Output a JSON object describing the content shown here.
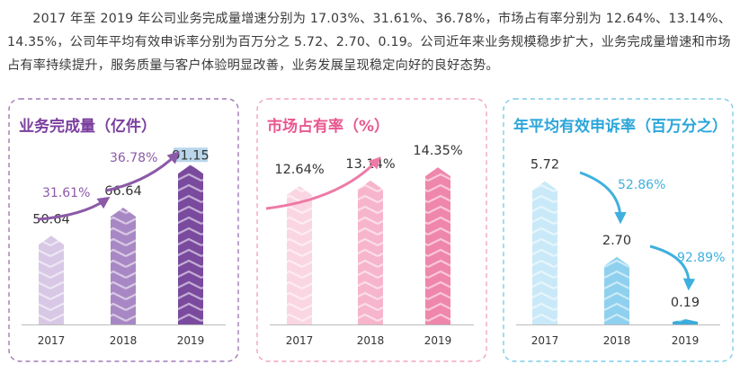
{
  "intro_text": "2017 年至 2019 年公司业务完成量增速分别为 17.03%、31.61%、36.78%，市场占有率分别为 12.64%、13.14%、14.35%，公司年平均有效申诉率分别为百万分之 5.72、2.70、0.19。公司近年来业务规模稳步扩大，业务完成量增速和市场占有率持续提升，服务质量与客户体验明显改善，业务发展呈现稳定向好的良好态势。",
  "chart_data": [
    {
      "type": "bar",
      "title": "业务完成量（亿件）",
      "categories": [
        "2017",
        "2018",
        "2019"
      ],
      "values": [
        50.64,
        66.64,
        91.15
      ],
      "value_labels": [
        "50.64",
        "66.64",
        "91.15"
      ],
      "growth_labels": [
        "31.61%",
        "36.78%"
      ],
      "ylim": [
        0,
        100
      ],
      "color_main": "#8b5aa8",
      "color_title": "#7b3f9e",
      "bar_colors": [
        "#d8c8e6",
        "#a888c4",
        "#7a4a9e"
      ],
      "border_color": "#a07ab8"
    },
    {
      "type": "bar",
      "title": "市场占有率（%）",
      "categories": [
        "2017",
        "2018",
        "2019"
      ],
      "values": [
        12.64,
        13.14,
        14.35
      ],
      "value_labels": [
        "12.64%",
        "13.14%",
        "14.35%"
      ],
      "growth_labels": [],
      "ylim": [
        0,
        16
      ],
      "color_main": "#ee7aa6",
      "color_title": "#e9568f",
      "bar_colors": [
        "#fad6e2",
        "#f6b5cc",
        "#ef86ac"
      ],
      "border_color": "#f2a4c2"
    },
    {
      "type": "bar",
      "title": "年平均有效申诉率（百万分之）",
      "categories": [
        "2017",
        "2018",
        "2019"
      ],
      "values": [
        5.72,
        2.7,
        0.19
      ],
      "value_labels": [
        "5.72",
        "2.70",
        "0.19"
      ],
      "growth_labels": [
        "52.86%",
        "92.89%"
      ],
      "ylim": [
        0,
        7
      ],
      "color_main": "#3fb0de",
      "color_title": "#2ba6d9",
      "bar_colors": [
        "#c9e9f8",
        "#8fd0ee",
        "#3cacdc"
      ],
      "border_color": "#7fcbea"
    }
  ]
}
